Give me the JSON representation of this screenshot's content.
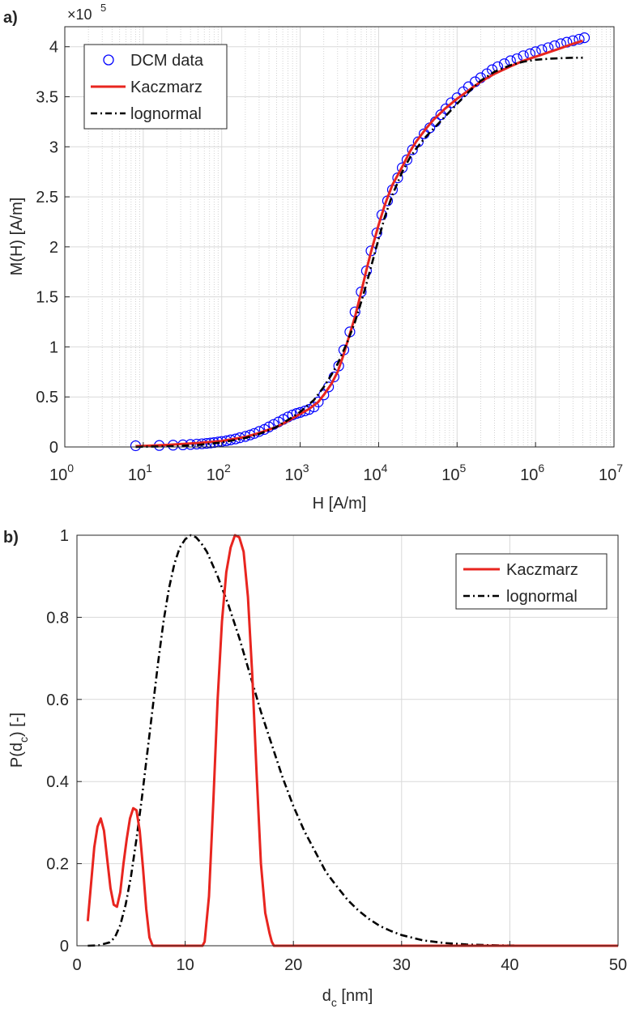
{
  "chart_data": [
    {
      "panel_label": "a)",
      "type": "line",
      "xscale": "log",
      "xlabel": "H [A/m]",
      "ylabel": "M(H) [A/m]",
      "y_multiplier": "×10",
      "y_multiplier_exp": "5",
      "xlim": [
        1,
        10000000
      ],
      "ylim": [
        0,
        420000
      ],
      "grid": true,
      "minor_grid_x": true,
      "legend_position": "top-left",
      "x_tick_exponents": [
        "0",
        "1",
        "2",
        "3",
        "4",
        "5",
        "6",
        "7"
      ],
      "y_tick_labels": [
        "0",
        "0.5",
        "1",
        "1.5",
        "2",
        "2.5",
        "3",
        "3.5",
        "4"
      ],
      "series": [
        {
          "name": "DCM data",
          "style": "circles",
          "color": "#0000ff",
          "x": [
            8,
            16,
            24,
            32,
            40,
            48,
            56,
            64,
            72,
            80,
            90,
            100,
            115,
            130,
            150,
            170,
            200,
            230,
            260,
            300,
            350,
            400,
            460,
            530,
            610,
            700,
            800,
            900,
            1000,
            1150,
            1300,
            1500,
            1700,
            2000,
            2300,
            2700,
            3100,
            3600,
            4300,
            5000,
            6000,
            7000,
            8000,
            9500,
            11000,
            13000,
            15000,
            17500,
            20000,
            23000,
            27000,
            32000,
            38000,
            45000,
            53000,
            62000,
            72000,
            84000,
            100000,
            120000,
            140000,
            170000,
            200000,
            240000,
            280000,
            330000,
            400000,
            480000,
            580000,
            700000,
            850000,
            1000000,
            1200000,
            1450000,
            1750000,
            2100000,
            2500000,
            3000000,
            3600000,
            4200000
          ],
          "y": [
            1200,
            1500,
            1800,
            2100,
            2500,
            2900,
            3200,
            3600,
            4000,
            4400,
            5000,
            5500,
            6200,
            7100,
            8000,
            9200,
            10500,
            12000,
            13500,
            15500,
            17500,
            20000,
            22500,
            25000,
            27500,
            30000,
            32000,
            33500,
            34500,
            36000,
            37500,
            40000,
            45000,
            52000,
            60000,
            70000,
            81000,
            97000,
            115000,
            135000,
            155000,
            176000,
            196000,
            214000,
            232000,
            246000,
            257000,
            269000,
            279000,
            287000,
            297000,
            305000,
            313000,
            319000,
            325000,
            332000,
            338000,
            344000,
            349000,
            355000,
            360000,
            365000,
            369000,
            373000,
            377000,
            380000,
            383000,
            386000,
            388000,
            391000,
            393000,
            395000,
            397000,
            399000,
            401000,
            403000,
            404500,
            406000,
            407500,
            409000
          ]
        },
        {
          "name": "Kaczmarz",
          "style": "solid",
          "color": "#e8251f",
          "x": [
            8,
            10,
            20,
            50,
            100,
            200,
            300,
            500,
            700,
            1000,
            1300,
            1700,
            2000,
            2500,
            3000,
            3500,
            4000,
            5000,
            6000,
            7000,
            8000,
            10000,
            12000,
            15000,
            20000,
            25000,
            30000,
            40000,
            50000,
            70000,
            100000,
            150000,
            200000,
            300000,
            500000,
            700000,
            1000000,
            2000000,
            3000000,
            4000000
          ],
          "y": [
            800,
            1000,
            2000,
            4000,
            6000,
            10000,
            14000,
            20000,
            26000,
            33000,
            38000,
            45000,
            52000,
            63000,
            75000,
            90000,
            105000,
            130000,
            155000,
            177000,
            195000,
            222000,
            242000,
            262000,
            280000,
            295000,
            305000,
            318000,
            327000,
            338000,
            348000,
            358000,
            365000,
            373000,
            381000,
            386000,
            390000,
            398000,
            403000,
            406000
          ]
        },
        {
          "name": "lognormal",
          "style": "dashdot",
          "color": "#000000",
          "x": [
            8,
            10,
            20,
            50,
            100,
            200,
            300,
            500,
            700,
            1000,
            1500,
            2000,
            2500,
            3000,
            4000,
            5000,
            6000,
            7000,
            8000,
            10000,
            12000,
            15000,
            20000,
            25000,
            30000,
            40000,
            50000,
            70000,
            100000,
            150000,
            200000,
            300000,
            400000,
            500000,
            700000,
            1000000,
            1500000,
            2000000,
            3000000,
            4000000
          ],
          "y": [
            0,
            200,
            600,
            2000,
            4500,
            9000,
            13000,
            20000,
            27000,
            35000,
            47000,
            60000,
            72000,
            83000,
            105000,
            125000,
            145000,
            163000,
            180000,
            208000,
            230000,
            252000,
            275000,
            289000,
            298000,
            310000,
            318000,
            330000,
            343000,
            357000,
            366000,
            375000,
            379000,
            382000,
            385000,
            387000,
            388000,
            388500,
            389000,
            389000
          ]
        }
      ]
    },
    {
      "panel_label": "b)",
      "type": "line",
      "xscale": "linear",
      "xlabel": "d",
      "xlabel_sub": "c",
      "xlabel_tail": " [nm]",
      "ylabel": "P(d",
      "ylabel_sub": "c",
      "ylabel_tail": ") [-]",
      "xlim": [
        0,
        50
      ],
      "ylim": [
        0,
        1
      ],
      "grid": true,
      "legend_position": "top-right",
      "x_tick_labels": [
        "0",
        "10",
        "20",
        "30",
        "40",
        "50"
      ],
      "y_tick_labels": [
        "0",
        "0.2",
        "0.4",
        "0.6",
        "0.8",
        "1"
      ],
      "series": [
        {
          "name": "Kaczmarz",
          "style": "solid",
          "color": "#e8251f",
          "x": [
            1,
            1.3,
            1.6,
            1.9,
            2.2,
            2.5,
            2.8,
            3.1,
            3.4,
            3.7,
            4.0,
            4.3,
            4.6,
            4.9,
            5.2,
            5.5,
            5.8,
            6.1,
            6.4,
            6.7,
            7.0,
            7.3,
            11.6,
            11.8,
            12.2,
            12.6,
            13.0,
            13.4,
            13.8,
            14.2,
            14.6,
            15.0,
            15.4,
            15.8,
            16.2,
            16.6,
            17.0,
            17.4,
            17.8,
            18.0,
            18.2,
            50
          ],
          "y": [
            0.06,
            0.15,
            0.24,
            0.29,
            0.31,
            0.28,
            0.21,
            0.14,
            0.1,
            0.095,
            0.13,
            0.2,
            0.26,
            0.31,
            0.335,
            0.33,
            0.28,
            0.19,
            0.09,
            0.02,
            0,
            0,
            0,
            0.01,
            0.12,
            0.35,
            0.6,
            0.79,
            0.91,
            0.97,
            1.0,
            0.995,
            0.96,
            0.85,
            0.66,
            0.42,
            0.2,
            0.08,
            0.03,
            0.01,
            0,
            0
          ]
        },
        {
          "name": "lognormal",
          "style": "dashdot",
          "color": "#000000",
          "x": [
            1,
            2,
            3,
            3.5,
            4,
            4.5,
            5,
            5.5,
            6,
            6.5,
            7,
            7.5,
            8,
            8.5,
            9,
            9.5,
            10,
            10.5,
            11,
            11.5,
            12,
            12.5,
            13,
            14,
            15,
            16,
            17,
            18,
            19,
            20,
            21,
            22,
            23,
            24,
            25,
            26,
            27,
            28,
            29,
            30,
            32,
            34,
            36,
            38,
            40,
            42,
            45,
            50
          ],
          "y": [
            0,
            0.001,
            0.008,
            0.02,
            0.05,
            0.1,
            0.17,
            0.26,
            0.36,
            0.47,
            0.58,
            0.69,
            0.79,
            0.87,
            0.93,
            0.97,
            0.99,
            1.0,
            0.995,
            0.98,
            0.96,
            0.93,
            0.9,
            0.83,
            0.75,
            0.66,
            0.57,
            0.49,
            0.41,
            0.34,
            0.28,
            0.23,
            0.18,
            0.145,
            0.112,
            0.086,
            0.065,
            0.048,
            0.036,
            0.026,
            0.013,
            0.0065,
            0.0031,
            0.0014,
            0.0006,
            0.0003,
            0.0001,
            0
          ]
        }
      ]
    }
  ]
}
